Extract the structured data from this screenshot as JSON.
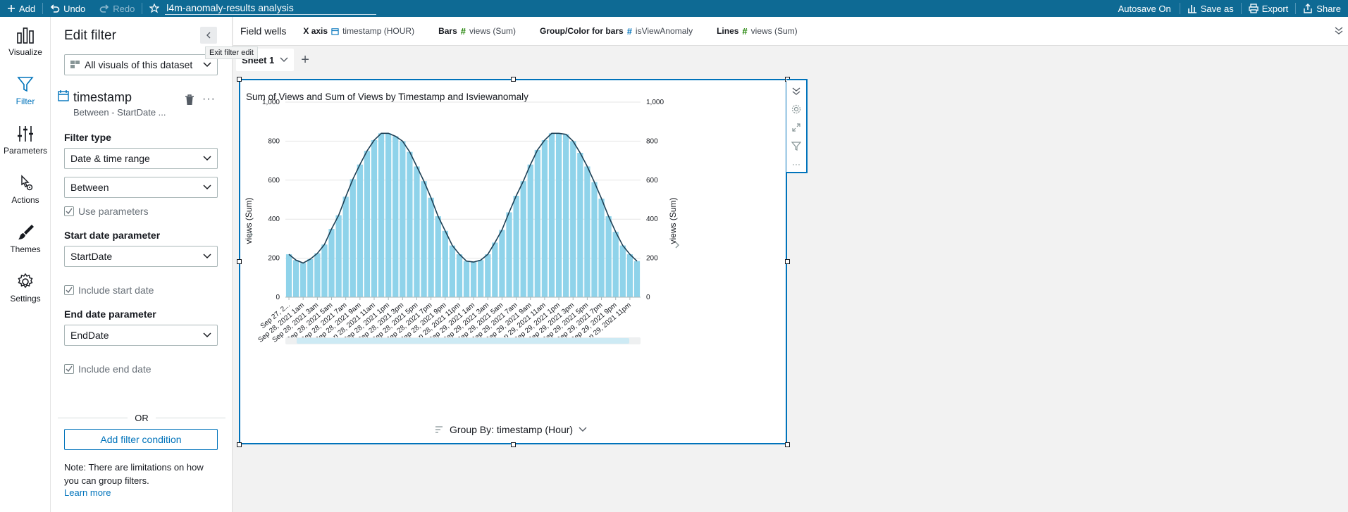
{
  "topbar": {
    "add": "Add",
    "undo": "Undo",
    "redo": "Redo",
    "analysis_title": "l4m-anomaly-results analysis",
    "autosave": "Autosave On",
    "save_as": "Save as",
    "export": "Export",
    "share": "Share"
  },
  "nav": {
    "items": [
      {
        "label": "Visualize",
        "icon": "bar-chart-icon"
      },
      {
        "label": "Filter",
        "icon": "filter-icon"
      },
      {
        "label": "Parameters",
        "icon": "sliders-icon"
      },
      {
        "label": "Actions",
        "icon": "pointer-gear-icon"
      },
      {
        "label": "Themes",
        "icon": "paintbrush-icon"
      },
      {
        "label": "Settings",
        "icon": "gear-icon"
      }
    ]
  },
  "filter_panel": {
    "title": "Edit filter",
    "tooltip": "Exit filter edit",
    "scope": "All visuals of this dataset",
    "field_name": "timestamp",
    "field_summary": "Between - StartDate ...",
    "filter_type_label": "Filter type",
    "filter_type": "Date & time range",
    "condition": "Between",
    "use_parameters": "Use parameters",
    "start_label": "Start date parameter",
    "start_value": "StartDate",
    "include_start": "Include start date",
    "end_label": "End date parameter",
    "end_value": "EndDate",
    "include_end": "Include end date",
    "or": "OR",
    "add_condition": "Add filter condition",
    "note": "Note: There are limitations on how you can group filters.",
    "learn_more": "Learn more"
  },
  "field_wells": {
    "title": "Field wells",
    "xaxis_label": "X axis",
    "xaxis_value": "timestamp (HOUR)",
    "bars_label": "Bars",
    "bars_value": "views (Sum)",
    "group_label": "Group/Color for bars",
    "group_value": "isViewAnomaly",
    "lines_label": "Lines",
    "lines_value": "views (Sum)"
  },
  "sheet": {
    "tab": "Sheet 1"
  },
  "visual": {
    "group_by": "Group By: timestamp (Hour)"
  },
  "chart_data": {
    "type": "bar",
    "title": "Sum of Views and Sum of Views by Timestamp and Isviewanomaly",
    "ylabel": "views (Sum)",
    "ylabel_right": "views (Sum)",
    "ylim": [
      0,
      1000
    ],
    "yticks": [
      0,
      200,
      400,
      600,
      800,
      "1,000"
    ],
    "grid": true,
    "bar_color": "#8fd3ea",
    "line_color": "#1d3f54",
    "tick_labels": [
      "Sep 27, 2...",
      "Sep 28, 2021 1am",
      "Sep 28, 2021 3am",
      "Sep 28, 2021 5am",
      "Sep 28, 2021 7am",
      "Sep 28, 2021 9am",
      "Sep 28, 2021 11am",
      "Sep 28, 2021 1pm",
      "Sep 28, 2021 3pm",
      "Sep 28, 2021 5pm",
      "Sep 28, 2021 7pm",
      "Sep 28, 2021 9pm",
      "Sep 28, 2021 11pm",
      "Sep 29, 2021 1am",
      "Sep 29, 2021 3am",
      "Sep 29, 2021 5am",
      "Sep 29, 2021 7am",
      "Sep 29, 2021 9am",
      "Sep 29, 2021 11am",
      "Sep 29, 2021 1pm",
      "Sep 29, 2021 3pm",
      "Sep 29, 2021 5pm",
      "Sep 29, 2021 7pm",
      "Sep 29, 2021 9pm",
      "Sep 29, 2021 11pm"
    ],
    "values": [
      220,
      190,
      175,
      195,
      225,
      270,
      350,
      420,
      515,
      605,
      680,
      750,
      805,
      840,
      840,
      825,
      800,
      745,
      670,
      595,
      510,
      415,
      340,
      265,
      220,
      185,
      180,
      190,
      220,
      280,
      345,
      435,
      520,
      595,
      680,
      755,
      805,
      840,
      840,
      835,
      800,
      740,
      670,
      590,
      505,
      415,
      335,
      265,
      220,
      185
    ]
  }
}
